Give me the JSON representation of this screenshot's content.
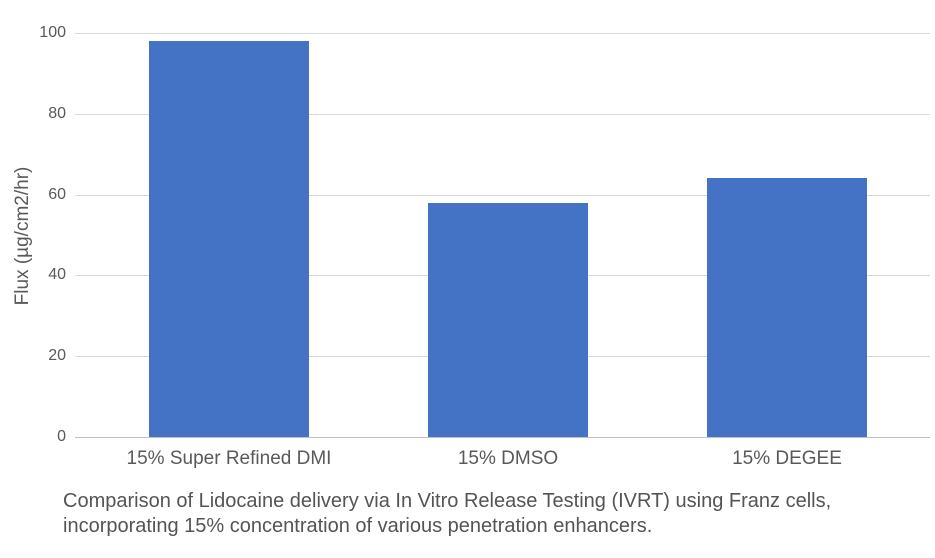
{
  "chart_data": {
    "type": "bar",
    "categories": [
      "15% Super Refined DMI",
      "15% DMSO",
      "15% DEGEE"
    ],
    "values": [
      98,
      58,
      64
    ],
    "title": "",
    "xlabel": "",
    "ylabel": "Flux (µg/cm2/hr)",
    "ylim": [
      0,
      100
    ],
    "yticks": [
      0,
      20,
      40,
      60,
      80,
      100
    ],
    "grid": true,
    "legend": "none",
    "bar_color": "#4472C4"
  },
  "caption": {
    "line1": "Comparison of Lidocaine delivery via In Vitro Release Testing (IVRT) using Franz cells,",
    "line2": "incorporating 15% concentration of various penetration enhancers."
  },
  "colors": {
    "bar": "#4472C4",
    "gridline": "#d9d9d9",
    "axis_line": "#bfbfbf",
    "axis_text": "#595959",
    "caption_text": "#545454"
  }
}
